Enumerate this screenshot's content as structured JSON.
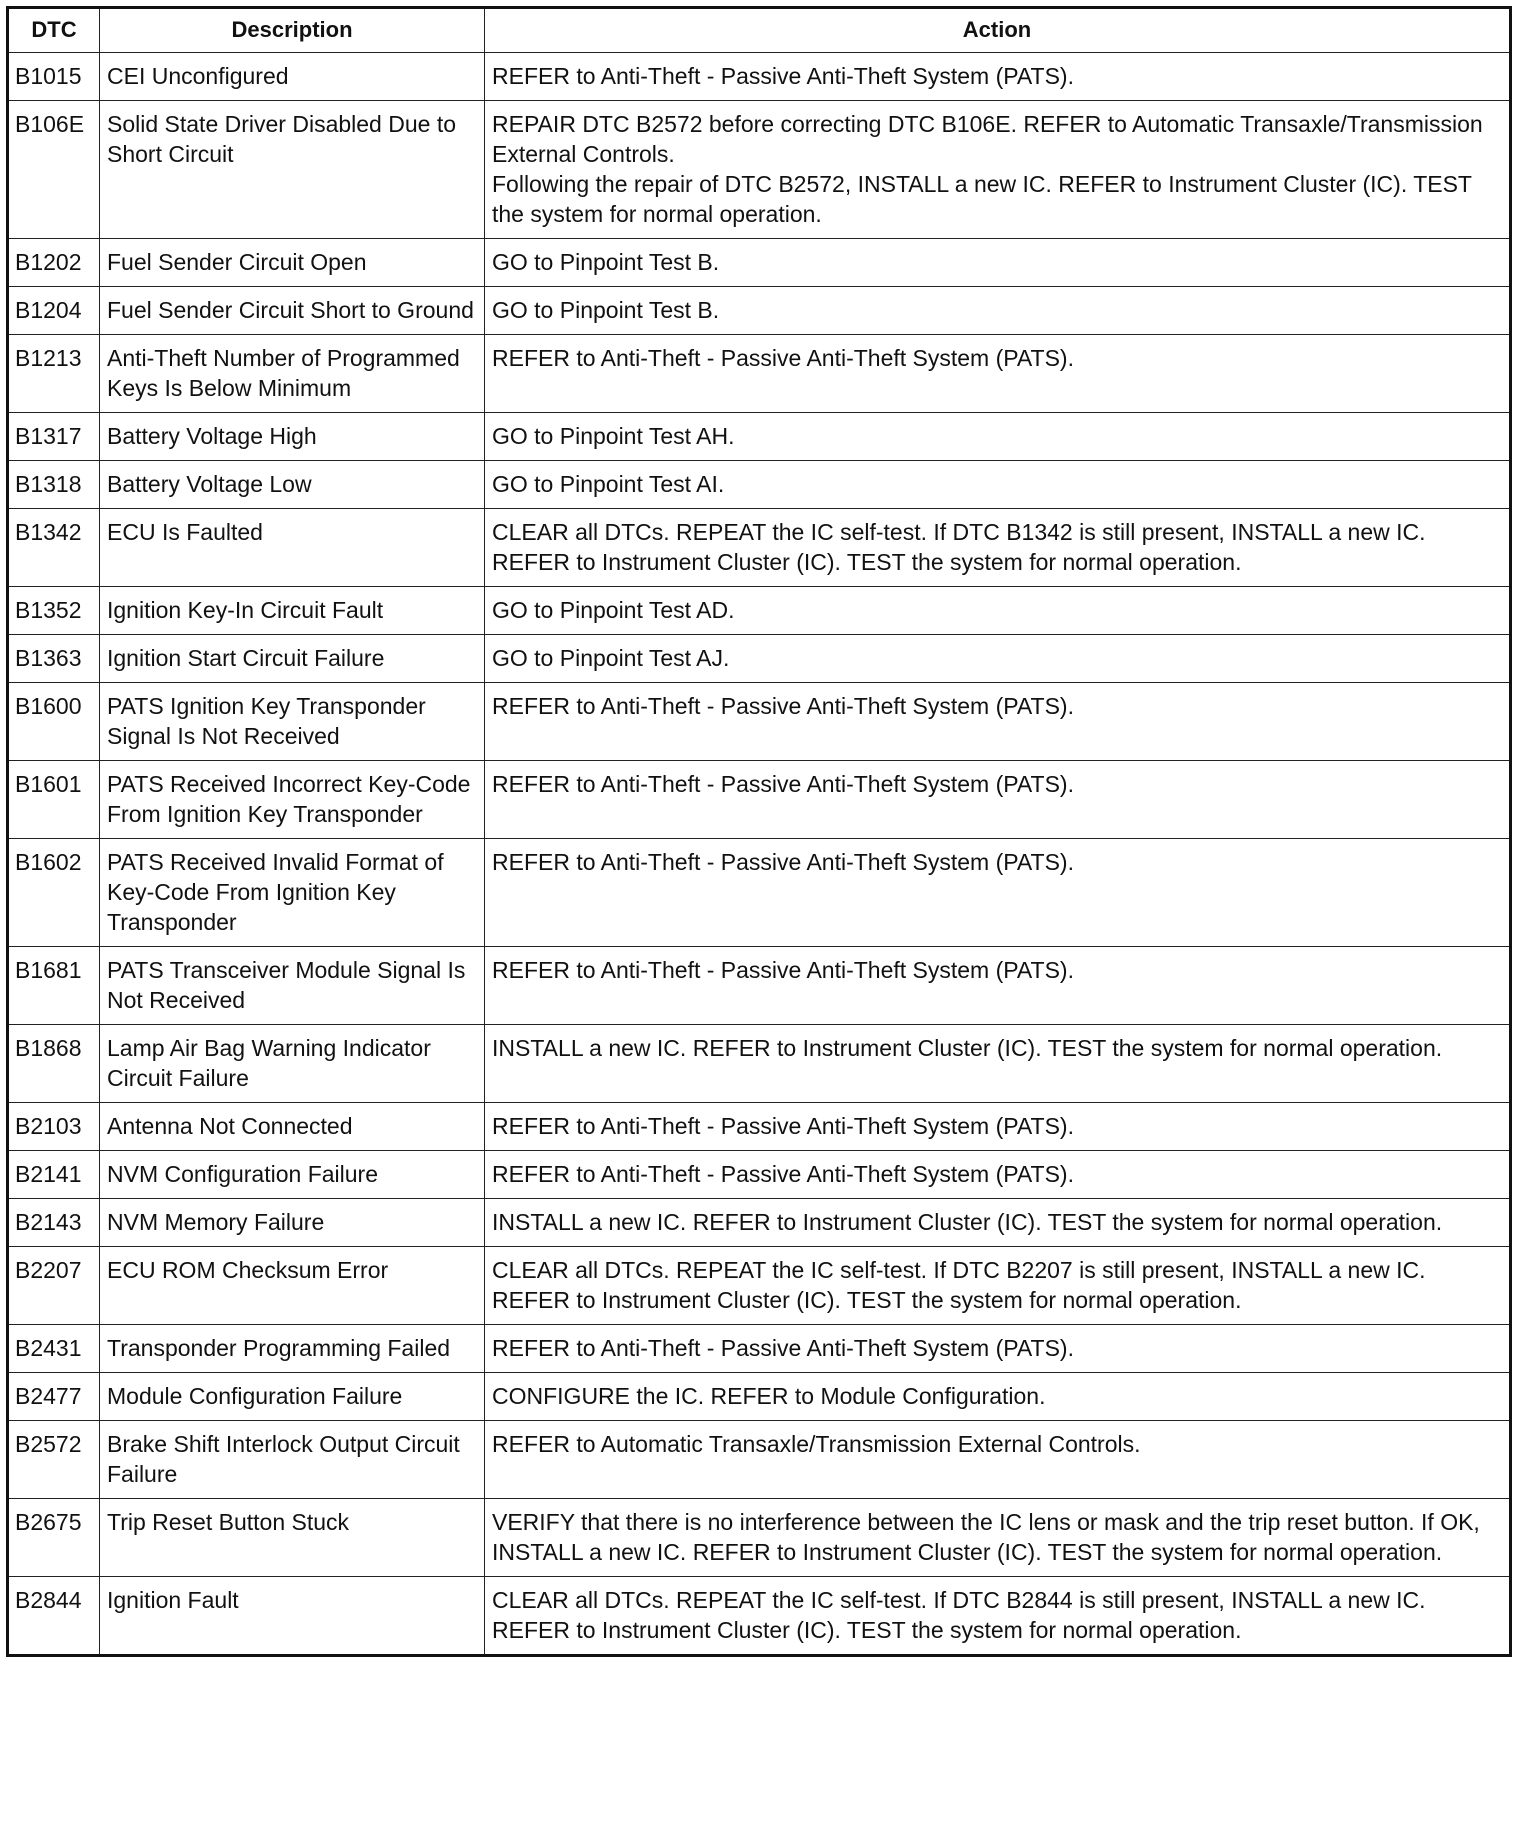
{
  "headers": {
    "dtc": "DTC",
    "description": "Description",
    "action": "Action"
  },
  "rows": [
    {
      "dtc": "B1015",
      "description": "CEI Unconfigured",
      "action": [
        "REFER to Anti-Theft - Passive Anti-Theft System (PATS)."
      ]
    },
    {
      "dtc": "B106E",
      "description": "Solid State Driver Disabled Due to Short Circuit",
      "action": [
        "REPAIR DTC B2572 before correcting DTC B106E. REFER to Automatic Transaxle/Transmission External Controls.",
        "Following the repair of DTC B2572, INSTALL a new IC. REFER to Instrument Cluster (IC). TEST the system for normal operation."
      ]
    },
    {
      "dtc": "B1202",
      "description": "Fuel Sender Circuit Open",
      "action": [
        "GO to Pinpoint Test B."
      ]
    },
    {
      "dtc": "B1204",
      "description": "Fuel Sender Circuit Short to Ground",
      "action": [
        "GO to Pinpoint Test B."
      ]
    },
    {
      "dtc": "B1213",
      "description": "Anti-Theft Number of Programmed Keys Is Below Minimum",
      "action": [
        "REFER to Anti-Theft - Passive Anti-Theft System (PATS)."
      ]
    },
    {
      "dtc": "B1317",
      "description": "Battery Voltage High",
      "action": [
        "GO to Pinpoint Test AH."
      ]
    },
    {
      "dtc": "B1318",
      "description": "Battery Voltage Low",
      "action": [
        "GO to Pinpoint Test AI."
      ]
    },
    {
      "dtc": "B1342",
      "description": "ECU Is Faulted",
      "action": [
        "CLEAR all DTCs. REPEAT the IC self-test. If DTC B1342 is still present, INSTALL a new IC. REFER to Instrument Cluster (IC). TEST the system for normal operation."
      ]
    },
    {
      "dtc": "B1352",
      "description": "Ignition Key-In Circuit Fault",
      "action": [
        "GO to Pinpoint Test AD."
      ]
    },
    {
      "dtc": "B1363",
      "description": "Ignition Start Circuit Failure",
      "action": [
        "GO to Pinpoint Test AJ."
      ]
    },
    {
      "dtc": "B1600",
      "description": "PATS Ignition Key Transponder Signal Is Not Received",
      "action": [
        "REFER to Anti-Theft - Passive Anti-Theft System (PATS)."
      ]
    },
    {
      "dtc": "B1601",
      "description": "PATS Received Incorrect Key-Code From Ignition Key Transponder",
      "action": [
        "REFER to Anti-Theft - Passive Anti-Theft System (PATS)."
      ]
    },
    {
      "dtc": "B1602",
      "description": "PATS Received Invalid Format of Key-Code From Ignition Key Transponder",
      "action": [
        "REFER to Anti-Theft - Passive Anti-Theft System (PATS)."
      ]
    },
    {
      "dtc": "B1681",
      "description": "PATS Transceiver Module Signal Is Not Received",
      "action": [
        "REFER to Anti-Theft - Passive Anti-Theft System (PATS)."
      ]
    },
    {
      "dtc": "B1868",
      "description": "Lamp Air Bag Warning Indicator Circuit Failure",
      "action": [
        "INSTALL a new IC. REFER to Instrument Cluster (IC). TEST the system for normal operation."
      ]
    },
    {
      "dtc": "B2103",
      "description": "Antenna Not Connected",
      "action": [
        "REFER to Anti-Theft - Passive Anti-Theft System (PATS)."
      ]
    },
    {
      "dtc": "B2141",
      "description": "NVM Configuration Failure",
      "action": [
        "REFER to Anti-Theft - Passive Anti-Theft System (PATS)."
      ]
    },
    {
      "dtc": "B2143",
      "description": "NVM Memory Failure",
      "action": [
        "INSTALL a new IC. REFER to Instrument Cluster (IC). TEST the system for normal operation."
      ]
    },
    {
      "dtc": "B2207",
      "description": "ECU ROM Checksum Error",
      "action": [
        "CLEAR all DTCs. REPEAT the IC self-test. If DTC B2207 is still present, INSTALL a new IC. REFER to Instrument Cluster (IC). TEST the system for normal operation."
      ]
    },
    {
      "dtc": "B2431",
      "description": "Transponder Programming Failed",
      "action": [
        "REFER to Anti-Theft - Passive Anti-Theft System (PATS)."
      ]
    },
    {
      "dtc": "B2477",
      "description": "Module Configuration Failure",
      "action": [
        "CONFIGURE the IC. REFER to Module Configuration."
      ]
    },
    {
      "dtc": "B2572",
      "description": "Brake Shift Interlock Output Circuit Failure",
      "action": [
        "REFER to Automatic Transaxle/Transmission External Controls."
      ]
    },
    {
      "dtc": "B2675",
      "description": "Trip Reset Button Stuck",
      "action": [
        "VERIFY that there is no interference between the IC lens or mask and the trip reset button. If OK, INSTALL a new IC. REFER to Instrument Cluster (IC). TEST the system for normal operation."
      ]
    },
    {
      "dtc": "B2844",
      "description": "Ignition Fault",
      "action": [
        "CLEAR all DTCs. REPEAT the IC self-test. If DTC B2844 is still present, INSTALL a new IC. REFER to Instrument Cluster (IC). TEST the system for normal operation."
      ]
    }
  ]
}
